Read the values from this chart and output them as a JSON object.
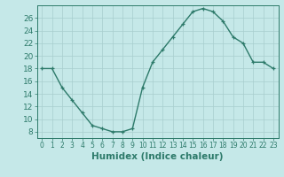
{
  "x": [
    0,
    1,
    2,
    3,
    4,
    5,
    6,
    7,
    8,
    9,
    10,
    11,
    12,
    13,
    14,
    15,
    16,
    17,
    18,
    19,
    20,
    21,
    22,
    23
  ],
  "y": [
    18,
    18,
    15,
    13,
    11,
    9,
    8.5,
    8,
    8,
    8.5,
    15,
    19,
    21,
    23,
    25,
    27,
    27.5,
    27,
    25.5,
    23,
    22,
    19,
    19,
    18
  ],
  "line_color": "#2d7a6a",
  "marker": "+",
  "bg_color": "#c5e8e8",
  "grid_color": "#a8cece",
  "xlabel": "Humidex (Indice chaleur)",
  "ylim": [
    7,
    28
  ],
  "xlim": [
    -0.5,
    23.5
  ],
  "yticks": [
    8,
    10,
    12,
    14,
    16,
    18,
    20,
    22,
    24,
    26
  ],
  "xticks": [
    0,
    1,
    2,
    3,
    4,
    5,
    6,
    7,
    8,
    9,
    10,
    11,
    12,
    13,
    14,
    15,
    16,
    17,
    18,
    19,
    20,
    21,
    22,
    23
  ],
  "font_color": "#2d7a6a",
  "ytick_fontsize": 6.5,
  "xtick_fontsize": 5.5,
  "xlabel_fontsize": 7.5,
  "line_width": 1.0,
  "marker_size": 3.5,
  "marker_edge_width": 0.9
}
